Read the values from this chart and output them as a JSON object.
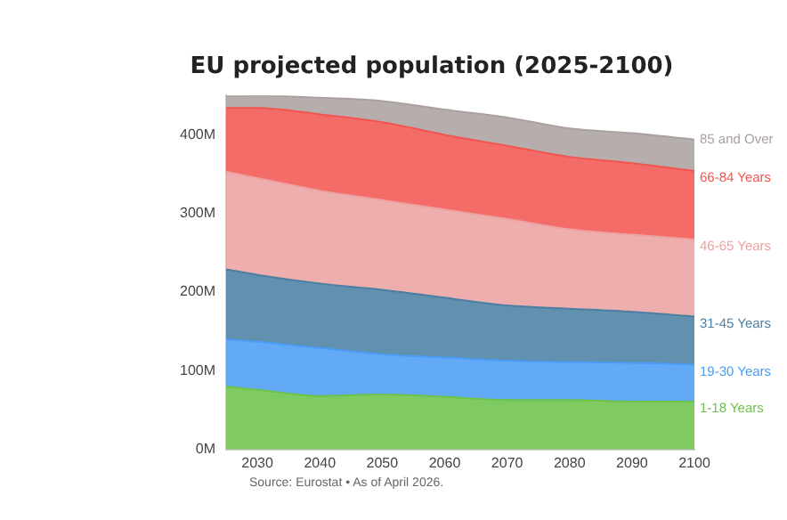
{
  "chart_data": {
    "type": "area",
    "stacked": true,
    "title": "EU projected population (2025-2100)",
    "x": [
      2025,
      2030,
      2040,
      2050,
      2060,
      2070,
      2080,
      2090,
      2100
    ],
    "xlim": [
      2025,
      2100
    ],
    "xticks": [
      2030,
      2040,
      2050,
      2060,
      2070,
      2080,
      2090,
      2100
    ],
    "ylim": [
      0,
      450
    ],
    "yticks": [
      {
        "value": 0,
        "label": "0M"
      },
      {
        "value": 100,
        "label": "100M"
      },
      {
        "value": 200,
        "label": "200M"
      },
      {
        "value": 300,
        "label": "300M"
      },
      {
        "value": 400,
        "label": "400M"
      }
    ],
    "grid": false,
    "legend": false,
    "series": [
      {
        "name": "1-18 Years",
        "color": "#6cc24a",
        "values": [
          80,
          76,
          68,
          70,
          67,
          63,
          63,
          61,
          61
        ]
      },
      {
        "name": "19-30 Years",
        "color": "#4a9cf5",
        "values": [
          60,
          61,
          61,
          51,
          50,
          50,
          48,
          49,
          47
        ]
      },
      {
        "name": "31-45 Years",
        "color": "#4a7fa3",
        "values": [
          89,
          85,
          82,
          82,
          76,
          70,
          68,
          65,
          61
        ]
      },
      {
        "name": "46-65 Years",
        "color": "#eda1a1",
        "values": [
          124,
          123,
          118,
          114,
          112,
          110,
          101,
          98,
          98
        ]
      },
      {
        "name": "66-84 Years",
        "color": "#f25550",
        "values": [
          81,
          89,
          97,
          99,
          95,
          93,
          92,
          91,
          87
        ]
      },
      {
        "name": "85 and Over",
        "color": "#aaa19f",
        "values": [
          15,
          16,
          21,
          27,
          32,
          36,
          36,
          38,
          40
        ]
      }
    ],
    "annotations": [
      "Source: Eurostat • As of April 2026."
    ]
  }
}
